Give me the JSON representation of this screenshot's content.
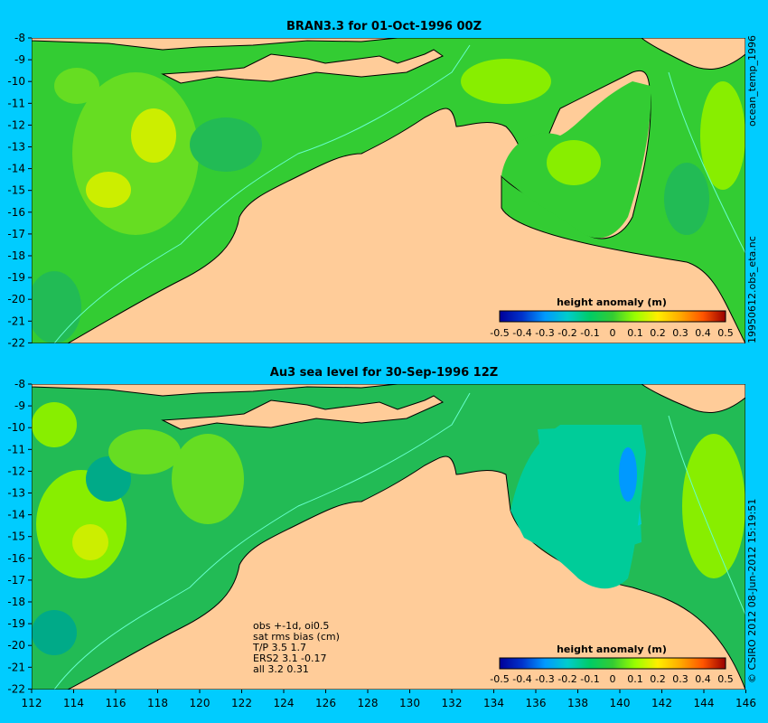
{
  "top_panel": {
    "title": "BRAN3.3  for 01-Oct-1996 00Z",
    "colorbar_label": "height anomaly (m)"
  },
  "bottom_panel": {
    "title": "Au3 sea level  for 30-Sep-1996 12Z",
    "colorbar_label": "height anomaly (m)",
    "notes": [
      "obs +-1d, oi0.5",
      "sat rms bias (cm)",
      "T/P   3.5 1.7",
      "ERS2 3.1 -0.17",
      "all 3.2 0.31"
    ]
  },
  "side_labels": {
    "top_file": "ocean_temp_1996",
    "mid_file": "19950612.obs_eta.nc",
    "credit": "© CSIRO 2012   08-Jun-2012 15:19:51"
  },
  "y_ticks": [
    "-8",
    "-9",
    "-10",
    "-11",
    "-12",
    "-13",
    "-14",
    "-15",
    "-16",
    "-17",
    "-18",
    "-19",
    "-20",
    "-21",
    "-22"
  ],
  "x_ticks": [
    "112",
    "114",
    "116",
    "118",
    "120",
    "122",
    "124",
    "126",
    "128",
    "130",
    "132",
    "134",
    "136",
    "138",
    "140",
    "142",
    "144",
    "146"
  ],
  "colorbar_ticks": [
    "-0.5",
    "-0.4",
    "-0.3",
    "-0.2",
    "-0.1",
    "0",
    "0.1",
    "0.2",
    "0.3",
    "0.4",
    "0.5"
  ],
  "colors": {
    "background": "#00ccff",
    "land": "#ffcc99",
    "ocean_base": "#33cc33",
    "coastline": "#000000",
    "isobath": "#66ffcc"
  }
}
